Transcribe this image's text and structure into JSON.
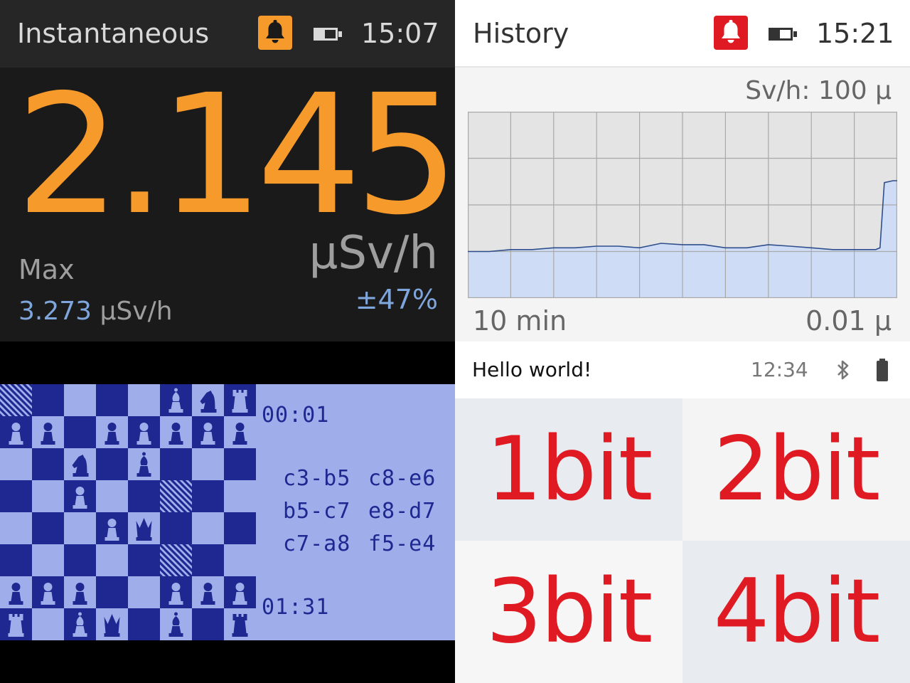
{
  "colors": {
    "accent_orange": "#f79a2c",
    "accent_blue": "#7fa6dc",
    "alert_red": "#e01a22",
    "lcd_dark": "#1e2890",
    "lcd_light": "#9fadeb",
    "chart_fill": "#cfdcf5",
    "chart_line": "#2f4f8c"
  },
  "instantaneous": {
    "title": "Instantaneous",
    "bell_icon": "bell-icon",
    "battery_icon": "battery-icon",
    "time": "15:07",
    "value": "2.145",
    "unit": "µSv/h",
    "max_label": "Max",
    "max_value": "3.273",
    "max_unit": " µSv/h",
    "confidence": "±47%"
  },
  "history": {
    "title": "History",
    "bell_icon": "bell-icon",
    "battery_icon": "battery-icon",
    "time": "15:21",
    "y_max_label": "Sv/h: 100 µ",
    "x_span_label": "10 min",
    "y_min_label": "0.01 µ",
    "chart_data": {
      "type": "area",
      "title": "",
      "xlabel": "10 min",
      "ylabel": "Sv/h",
      "y_scale": "log",
      "ylim": [
        0.01,
        100
      ],
      "grid": true,
      "x_range_minutes": [
        -10,
        0
      ],
      "x": [
        -10.0,
        -9.5,
        -9.0,
        -8.5,
        -8.0,
        -7.5,
        -7.0,
        -6.5,
        -6.0,
        -5.5,
        -5.0,
        -4.5,
        -4.0,
        -3.5,
        -3.0,
        -2.5,
        -2.0,
        -1.5,
        -1.0,
        -0.5,
        -0.4,
        -0.3,
        -0.1,
        0.0
      ],
      "y": [
        0.1,
        0.1,
        0.11,
        0.11,
        0.12,
        0.12,
        0.13,
        0.13,
        0.12,
        0.15,
        0.14,
        0.14,
        0.12,
        0.12,
        0.14,
        0.13,
        0.12,
        0.11,
        0.11,
        0.11,
        0.12,
        3.0,
        3.3,
        3.3
      ]
    }
  },
  "chess": {
    "timer_top": "00:01",
    "timer_bottom": "01:31",
    "moves": [
      {
        "white": "c3-b5",
        "black": "c8-e6"
      },
      {
        "white": "b5-c7",
        "black": "e8-d7"
      },
      {
        "white": "c7-a8",
        "black": "f5-e4"
      }
    ],
    "board": [
      [
        "x",
        "",
        "",
        "",
        "",
        "B",
        "N",
        "R"
      ],
      [
        "P",
        "P",
        "",
        "P",
        "P",
        "P",
        "P",
        "P"
      ],
      [
        "",
        "",
        "N",
        "",
        "B",
        "",
        "",
        ""
      ],
      [
        "",
        "",
        "P",
        "",
        "",
        "x",
        "",
        ""
      ],
      [
        "",
        "",
        "",
        "P",
        "Q",
        "",
        "",
        ""
      ],
      [
        "",
        "",
        "",
        "",
        "",
        "x",
        "",
        ""
      ],
      [
        "P",
        "P",
        "P",
        "",
        "",
        "P",
        "P",
        "P"
      ],
      [
        "R",
        "",
        "B",
        "Q",
        "",
        "B",
        "",
        "R"
      ]
    ]
  },
  "bitdepth": {
    "title": "Hello world!",
    "time": "12:34",
    "bluetooth_icon": "bluetooth-icon",
    "battery_icon": "battery-icon",
    "cells": [
      {
        "label": "1bit",
        "bg": "#e8ebef"
      },
      {
        "label": "2bit",
        "bg": "#f4f4f4"
      },
      {
        "label": "3bit",
        "bg": "#f6f6f6"
      },
      {
        "label": "4bit",
        "bg": "#e8ebef"
      }
    ]
  }
}
